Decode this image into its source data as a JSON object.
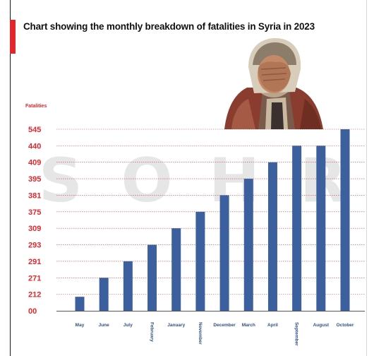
{
  "title": "Chart showing the monthly breakdown of fatalities in Syria in 2023",
  "watermark": [
    "S",
    "O",
    "H",
    "R"
  ],
  "colors": {
    "bar": "#3c5f9e",
    "accent": "#e3262b",
    "tick": "#e3262b",
    "category": "#2f4f86"
  },
  "chart_data": {
    "type": "bar",
    "title": "Chart showing the monthly breakdown of fatalities in Syria in 2023",
    "ylabel": "Fatalities",
    "xlabel": "",
    "y_tick_labels": [
      "00",
      "212",
      "271",
      "291",
      "293",
      "309",
      "375",
      "381",
      "395",
      "409",
      "440",
      "545"
    ],
    "categories": [
      "May",
      "June",
      "July",
      "February",
      "January",
      "November",
      "December",
      "March",
      "ApriI",
      "September",
      "August",
      "October"
    ],
    "values": [
      212,
      271,
      291,
      293,
      309,
      375,
      381,
      395,
      409,
      440,
      440,
      545
    ],
    "grid": true,
    "legend": "none"
  }
}
